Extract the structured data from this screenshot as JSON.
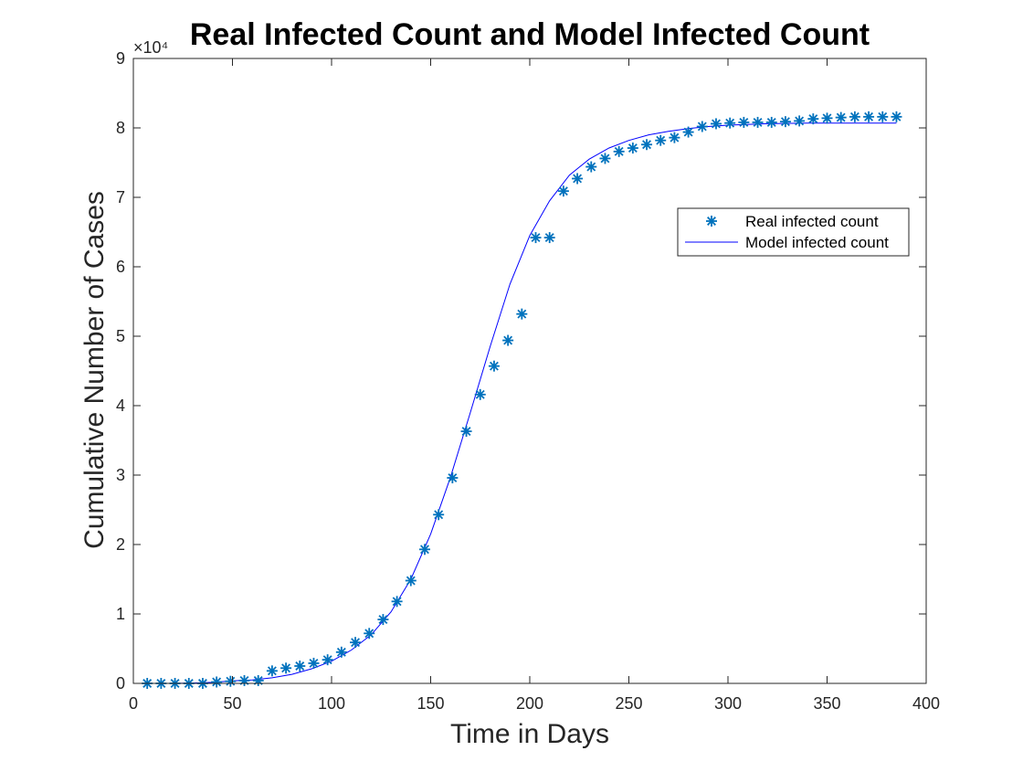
{
  "chart_data": {
    "type": "scatter",
    "title": "Real Infected Count and Model Infected Count",
    "xlabel": "Time in Days",
    "ylabel": "Cumulative Number of Cases",
    "xlim": [
      0,
      400
    ],
    "ylim": [
      0,
      90000
    ],
    "x_ticks": [
      "0",
      "50",
      "100",
      "150",
      "200",
      "250",
      "300",
      "350",
      "400"
    ],
    "y_ticks": [
      "0",
      "1",
      "2",
      "3",
      "4",
      "5",
      "6",
      "7",
      "8",
      "9"
    ],
    "y_exponent_label": "×10⁴",
    "grid": false,
    "legend_position": "top-right",
    "series": [
      {
        "name": "Real infected count",
        "kind": "scatter",
        "marker": "asterisk",
        "color": "#0072BD",
        "x": [
          7,
          14,
          21,
          28,
          35,
          42,
          49,
          56,
          63,
          70,
          77,
          84,
          91,
          98,
          105,
          112,
          119,
          126,
          133,
          140,
          147,
          154,
          161,
          168,
          175,
          182,
          189,
          196,
          203,
          210,
          217,
          224,
          231,
          238,
          245,
          252,
          259,
          266,
          273,
          280,
          287,
          294,
          301,
          308,
          315,
          322,
          329,
          336,
          343,
          350,
          357,
          364,
          371,
          378,
          385
        ],
        "y": [
          0,
          0,
          0,
          0,
          0,
          200,
          300,
          400,
          400,
          1800,
          2200,
          2500,
          2900,
          3400,
          4500,
          5900,
          7200,
          9200,
          11800,
          14800,
          19300,
          24300,
          29600,
          36300,
          41600,
          45700,
          49400,
          53200,
          64200,
          64200,
          70900,
          72700,
          74400,
          75600,
          76600,
          77100,
          77600,
          78200,
          78600,
          79400,
          80200,
          80600,
          80700,
          80800,
          80800,
          80800,
          80900,
          81000,
          81300,
          81400,
          81500,
          81600,
          81600,
          81600,
          81600
        ]
      },
      {
        "name": "Model infected count",
        "kind": "line",
        "color": "#0000FF",
        "x": [
          7,
          20,
          30,
          40,
          50,
          60,
          70,
          80,
          90,
          100,
          110,
          120,
          130,
          140,
          150,
          160,
          170,
          180,
          190,
          200,
          210,
          220,
          230,
          240,
          250,
          260,
          270,
          280,
          290,
          300,
          320,
          340,
          360,
          385
        ],
        "y": [
          0,
          0,
          50,
          150,
          350,
          500,
          800,
          1300,
          2100,
          3200,
          4800,
          7000,
          10300,
          15000,
          21500,
          29700,
          39000,
          48500,
          57500,
          64500,
          69500,
          73200,
          75500,
          77100,
          78200,
          79000,
          79500,
          79900,
          80200,
          80400,
          80600,
          80700,
          80700,
          80700
        ]
      }
    ]
  }
}
